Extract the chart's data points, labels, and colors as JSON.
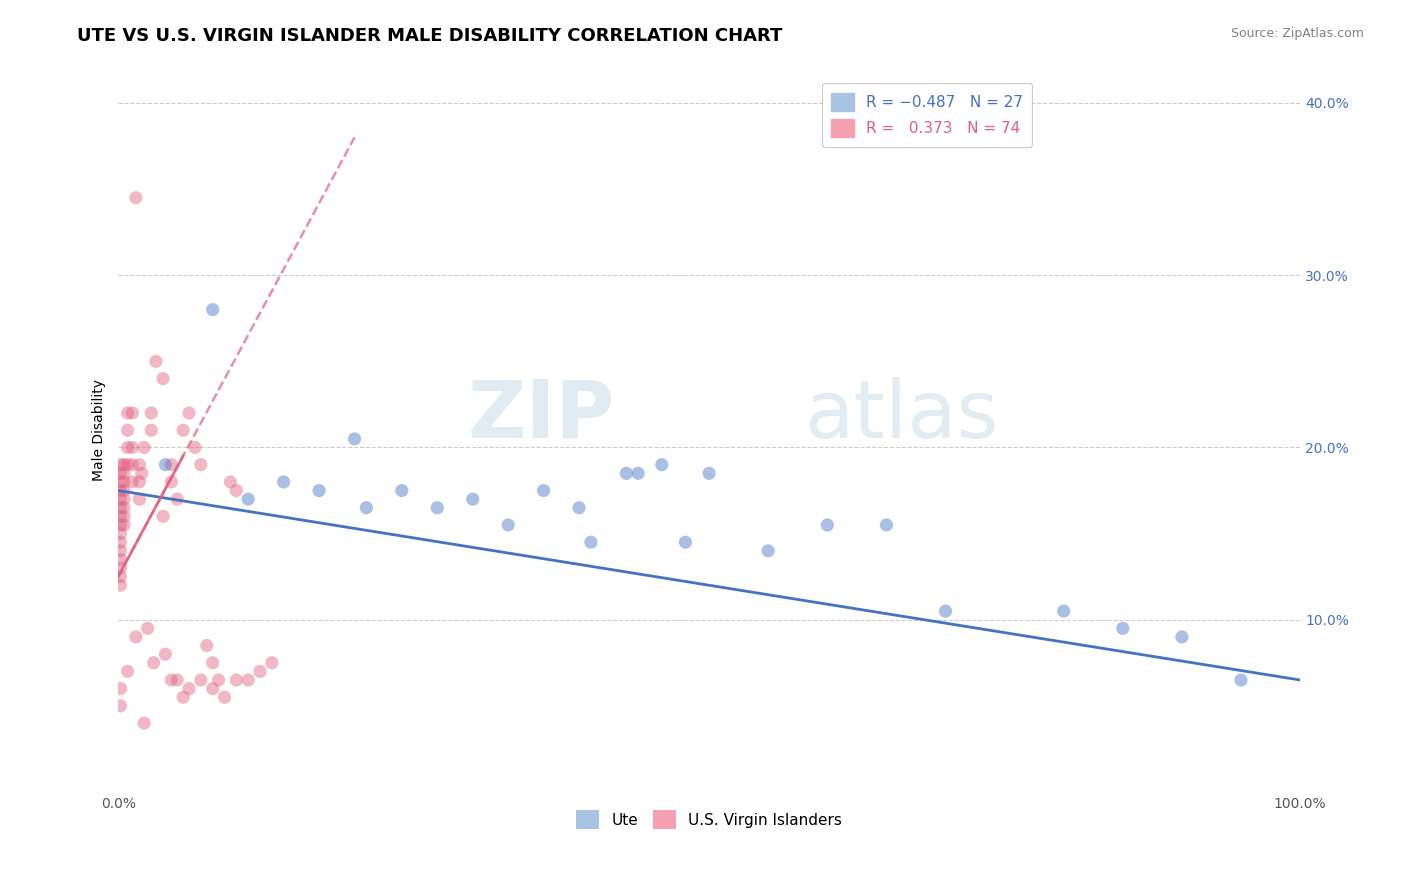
{
  "title": "UTE VS U.S. VIRGIN ISLANDER MALE DISABILITY CORRELATION CHART",
  "source": "Source: ZipAtlas.com",
  "ylabel": "Male Disability",
  "xlim": [
    0,
    1.0
  ],
  "ylim": [
    0,
    0.42
  ],
  "yticks": [
    0.0,
    0.1,
    0.2,
    0.3,
    0.4
  ],
  "ytick_labels": [
    "",
    "10.0%",
    "20.0%",
    "30.0%",
    "40.0%"
  ],
  "xticks": [
    0.0,
    0.25,
    0.5,
    0.75,
    1.0
  ],
  "xtick_labels": [
    "0.0%",
    "",
    "",
    "",
    "100.0%"
  ],
  "ute_scatter_x": [
    0.04,
    0.08,
    0.11,
    0.14,
    0.17,
    0.2,
    0.21,
    0.24,
    0.27,
    0.3,
    0.33,
    0.36,
    0.39,
    0.43,
    0.44,
    0.46,
    0.5,
    0.55,
    0.6,
    0.65,
    0.7,
    0.8,
    0.85,
    0.9,
    0.95,
    0.4,
    0.48
  ],
  "ute_scatter_y": [
    0.19,
    0.28,
    0.17,
    0.18,
    0.175,
    0.205,
    0.165,
    0.175,
    0.165,
    0.17,
    0.155,
    0.175,
    0.165,
    0.185,
    0.185,
    0.19,
    0.185,
    0.14,
    0.155,
    0.155,
    0.105,
    0.105,
    0.095,
    0.09,
    0.065,
    0.145,
    0.145
  ],
  "vi_scatter_x": [
    0.002,
    0.002,
    0.002,
    0.002,
    0.002,
    0.002,
    0.002,
    0.002,
    0.002,
    0.002,
    0.002,
    0.002,
    0.002,
    0.002,
    0.002,
    0.002,
    0.002,
    0.005,
    0.005,
    0.005,
    0.005,
    0.005,
    0.005,
    0.005,
    0.005,
    0.008,
    0.008,
    0.008,
    0.008,
    0.008,
    0.012,
    0.012,
    0.012,
    0.012,
    0.018,
    0.018,
    0.018,
    0.022,
    0.022,
    0.028,
    0.028,
    0.032,
    0.038,
    0.038,
    0.045,
    0.045,
    0.05,
    0.055,
    0.06,
    0.065,
    0.07,
    0.075,
    0.08,
    0.085,
    0.09,
    0.095,
    0.1,
    0.11,
    0.12,
    0.13,
    0.015,
    0.015,
    0.02,
    0.025,
    0.03,
    0.04,
    0.045,
    0.05,
    0.055,
    0.06,
    0.07,
    0.08,
    0.1
  ],
  "vi_scatter_y": [
    0.19,
    0.185,
    0.18,
    0.175,
    0.17,
    0.165,
    0.16,
    0.155,
    0.15,
    0.145,
    0.14,
    0.135,
    0.13,
    0.125,
    0.12,
    0.06,
    0.05,
    0.19,
    0.185,
    0.18,
    0.175,
    0.17,
    0.165,
    0.16,
    0.155,
    0.22,
    0.21,
    0.2,
    0.19,
    0.07,
    0.22,
    0.2,
    0.19,
    0.18,
    0.19,
    0.18,
    0.17,
    0.2,
    0.04,
    0.22,
    0.21,
    0.25,
    0.24,
    0.16,
    0.19,
    0.18,
    0.17,
    0.21,
    0.22,
    0.2,
    0.19,
    0.085,
    0.075,
    0.065,
    0.055,
    0.18,
    0.175,
    0.065,
    0.07,
    0.075,
    0.345,
    0.09,
    0.185,
    0.095,
    0.075,
    0.08,
    0.065,
    0.065,
    0.055,
    0.06,
    0.065,
    0.06,
    0.065
  ],
  "ute_line_x": [
    0.0,
    1.0
  ],
  "ute_line_y": [
    0.175,
    0.065
  ],
  "vi_line_x": [
    0.0,
    0.2
  ],
  "vi_line_y": [
    0.125,
    0.38
  ],
  "ute_line_color": "#4472c4",
  "vi_line_color": "#e06080",
  "background_color": "#ffffff",
  "grid_color": "#cccccc",
  "watermark_zip": "ZIP",
  "watermark_atlas": "atlas",
  "title_fontsize": 13,
  "axis_label_fontsize": 10,
  "tick_fontsize": 10
}
